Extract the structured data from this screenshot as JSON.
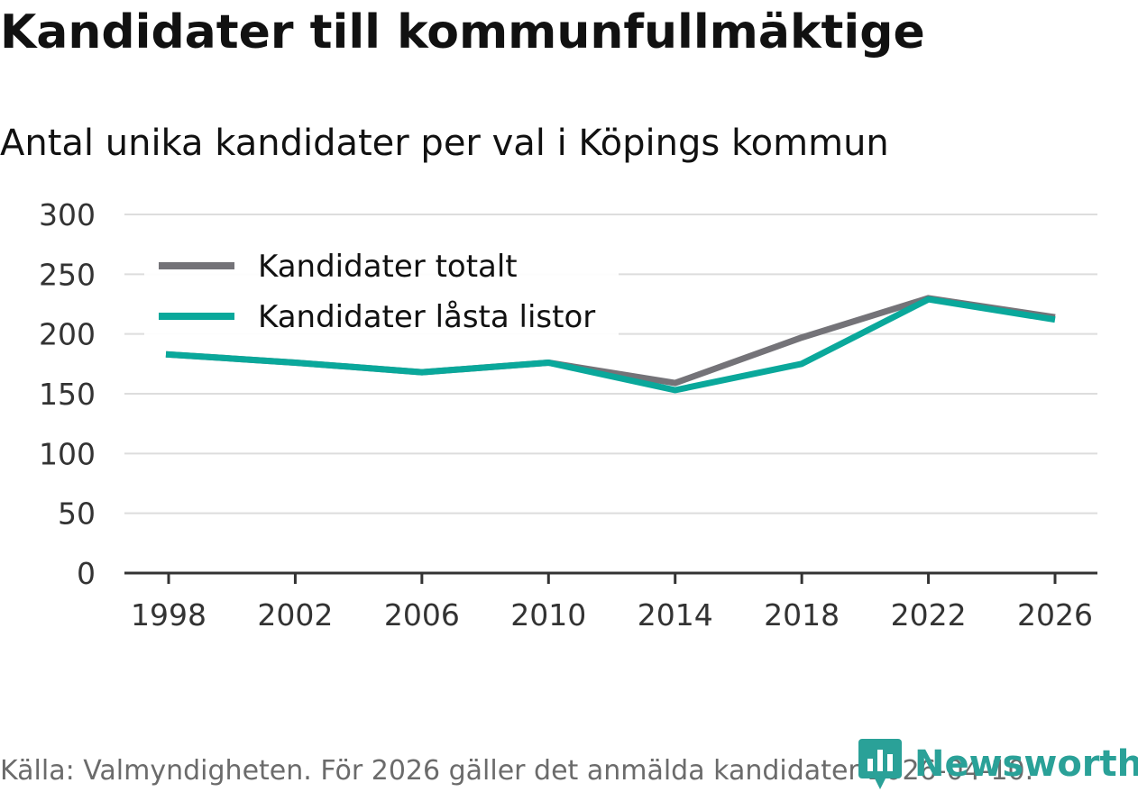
{
  "header": {
    "title": "Kandidater till kommunfullmäktige",
    "subtitle": "Antal unika kandidater per val i Köpings kommun"
  },
  "footer": {
    "source": "Källa: Valmyndigheten. För 2026 gäller det anmälda kandidater 2026-04-10.",
    "brand": "Newsworthy"
  },
  "colors": {
    "series_total": "#747378",
    "series_locked": "#0aa89b",
    "grid": "#dddddd",
    "axis": "#333333",
    "brand": "#2aa198"
  },
  "chart_data": {
    "type": "line",
    "title": "Kandidater till kommunfullmäktige",
    "subtitle": "Antal unika kandidater per val i Köpings kommun",
    "xlabel": "",
    "ylabel": "",
    "x": [
      1998,
      2002,
      2006,
      2010,
      2014,
      2018,
      2022,
      2026
    ],
    "x_tick_labels": [
      "1998",
      "2002",
      "2006",
      "2010",
      "2014",
      "2018",
      "2022",
      "2026"
    ],
    "y_ticks": [
      0,
      50,
      100,
      150,
      200,
      250,
      300
    ],
    "y_tick_labels": [
      "0",
      "50",
      "100",
      "150",
      "200",
      "250",
      "300"
    ],
    "ylim": [
      0,
      300
    ],
    "grid": true,
    "legend_position": "top-left",
    "series": [
      {
        "name": "Kandidater totalt",
        "color": "#747378",
        "values": [
          183,
          176,
          168,
          176,
          159,
          197,
          230,
          214
        ]
      },
      {
        "name": "Kandidater låsta listor",
        "color": "#0aa89b",
        "values": [
          183,
          176,
          168,
          176,
          153,
          175,
          229,
          212
        ]
      }
    ]
  }
}
